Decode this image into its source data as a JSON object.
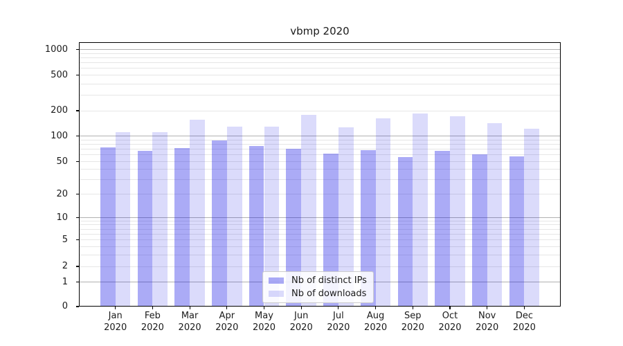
{
  "chart_data": {
    "type": "bar",
    "title": "vbmp 2020",
    "categories": [
      "Jan",
      "Feb",
      "Mar",
      "Apr",
      "May",
      "Jun",
      "Jul",
      "Aug",
      "Sep",
      "Oct",
      "Nov",
      "Dec"
    ],
    "category_year": "2020",
    "series": [
      {
        "name": "Nb of distinct IPs",
        "color": "rgba(13,13,230,0.35)",
        "values": [
          74,
          67,
          72,
          88,
          76,
          71,
          62,
          68,
          56,
          67,
          61,
          58
        ]
      },
      {
        "name": "Nb of downloads",
        "color": "rgba(13,13,230,0.15)",
        "values": [
          112,
          112,
          157,
          130,
          129,
          179,
          128,
          161,
          185,
          171,
          142,
          123
        ]
      }
    ],
    "yticks": [
      0,
      1,
      2,
      5,
      10,
      20,
      50,
      100,
      200,
      500,
      1000
    ],
    "yscale": "symlog",
    "ylim": [
      0,
      1200
    ],
    "grid": true,
    "legend_position": "lower center",
    "xlabel": "",
    "ylabel": ""
  },
  "colors": {
    "bar_dark": "rgba(13,13,230,0.35)",
    "bar_light": "rgba(13,13,230,0.15)",
    "major_grid": "#b0b0b0",
    "minor_grid": "#e6e6e6",
    "frame": "#000000",
    "text": "#1a1a1a",
    "legend_border": "#cccccc"
  }
}
